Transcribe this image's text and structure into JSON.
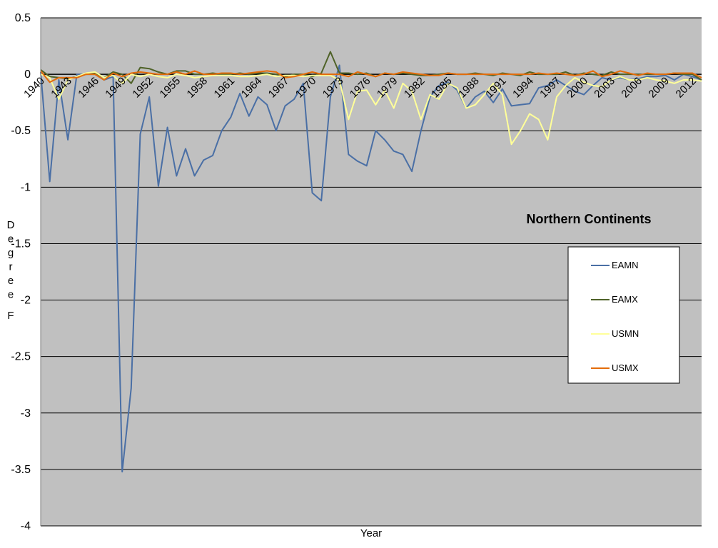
{
  "chart_data": {
    "type": "line",
    "title": "Northern Continents",
    "xlabel": "Year",
    "ylabel": "Degree F",
    "ylim": [
      -4,
      0.5
    ],
    "xlim": [
      1940,
      2013
    ],
    "yticks": [
      "0.5",
      "0",
      "-0.5",
      "-1",
      "-1.5",
      "-2",
      "-2.5",
      "-3",
      "-3.5",
      "-4"
    ],
    "ytick_values": [
      0.5,
      0,
      -0.5,
      -1,
      -1.5,
      -2,
      -2.5,
      -3,
      -3.5,
      -4
    ],
    "xticks": [
      "1940",
      "1943",
      "1946",
      "1949",
      "1952",
      "1955",
      "1958",
      "1961",
      "1964",
      "1967",
      "1970",
      "1973",
      "1976",
      "1979",
      "1982",
      "1985",
      "1988",
      "1991",
      "1994",
      "1997",
      "2000",
      "2003",
      "2006",
      "2009",
      "2012"
    ],
    "xtick_values": [
      1940,
      1943,
      1946,
      1949,
      1952,
      1955,
      1958,
      1961,
      1964,
      1967,
      1970,
      1973,
      1976,
      1979,
      1982,
      1985,
      1988,
      1991,
      1994,
      1997,
      2000,
      2003,
      2006,
      2009,
      2012
    ],
    "grid": "horizontal",
    "legend_position": "right",
    "x": [
      1940,
      1941,
      1942,
      1943,
      1944,
      1945,
      1946,
      1947,
      1948,
      1949,
      1950,
      1951,
      1952,
      1953,
      1954,
      1955,
      1956,
      1957,
      1958,
      1959,
      1960,
      1961,
      1962,
      1963,
      1964,
      1965,
      1966,
      1967,
      1968,
      1969,
      1970,
      1971,
      1972,
      1973,
      1974,
      1975,
      1976,
      1977,
      1978,
      1979,
      1980,
      1981,
      1982,
      1983,
      1984,
      1985,
      1986,
      1987,
      1988,
      1989,
      1990,
      1991,
      1992,
      1993,
      1994,
      1995,
      1996,
      1997,
      1998,
      1999,
      2000,
      2001,
      2002,
      2003,
      2004,
      2005,
      2006,
      2007,
      2008,
      2009,
      2010,
      2011,
      2012,
      2013
    ],
    "series": [
      {
        "name": "EAMN",
        "color": "#4a6fa5",
        "values": [
          0.02,
          -0.95,
          -0.05,
          -0.58,
          0.0,
          0.0,
          0.0,
          -0.05,
          -0.02,
          -3.52,
          -2.78,
          -0.53,
          -0.2,
          -0.99,
          -0.47,
          -0.9,
          -0.66,
          -0.9,
          -0.76,
          -0.72,
          -0.5,
          -0.38,
          -0.17,
          -0.37,
          -0.2,
          -0.27,
          -0.5,
          -0.28,
          -0.22,
          -0.08,
          -1.05,
          -1.12,
          -0.2,
          0.08,
          -0.71,
          -0.77,
          -0.81,
          -0.5,
          -0.58,
          -0.68,
          -0.71,
          -0.86,
          -0.5,
          -0.2,
          -0.1,
          -0.07,
          -0.14,
          -0.3,
          -0.2,
          -0.15,
          -0.25,
          -0.13,
          -0.28,
          -0.27,
          -0.26,
          -0.12,
          -0.1,
          -0.05,
          -0.1,
          -0.15,
          -0.18,
          -0.1,
          -0.03,
          -0.05,
          -0.03,
          -0.05,
          -0.04,
          -0.02,
          -0.02,
          -0.01,
          -0.05,
          0.0,
          -0.02,
          -0.05
        ]
      },
      {
        "name": "EAMX",
        "color": "#4f6228",
        "values": [
          0.04,
          -0.02,
          -0.03,
          -0.04,
          -0.02,
          0.0,
          0.01,
          -0.03,
          0.02,
          0.0,
          -0.08,
          0.06,
          0.05,
          0.02,
          0.0,
          0.03,
          0.03,
          0.0,
          0.0,
          0.01,
          0.0,
          0.0,
          0.01,
          0.0,
          0.01,
          0.01,
          0.0,
          -0.02,
          0.0,
          0.0,
          -0.02,
          0.01,
          0.2,
          0.01,
          0.01,
          0.0,
          0.01,
          -0.02,
          0.01,
          0.0,
          0.01,
          0.0,
          -0.01,
          -0.01,
          0.0,
          0.01,
          0.0,
          0.0,
          0.01,
          0.0,
          -0.01,
          0.01,
          0.0,
          -0.01,
          0.02,
          0.0,
          0.0,
          0.0,
          0.02,
          -0.01,
          0.01,
          0.0,
          -0.01,
          0.02,
          0.0,
          0.0,
          0.0,
          0.0,
          0.0,
          0.0,
          0.01,
          0.0,
          0.0,
          -0.05
        ]
      },
      {
        "name": "USMN",
        "color": "#ffff99",
        "values": [
          0.0,
          -0.03,
          -0.22,
          -0.05,
          -0.02,
          0.01,
          0.02,
          -0.03,
          -0.01,
          -0.08,
          0.0,
          -0.02,
          0.0,
          -0.02,
          -0.03,
          0.0,
          -0.01,
          -0.03,
          -0.02,
          -0.01,
          -0.01,
          -0.01,
          -0.02,
          -0.02,
          -0.01,
          0.0,
          -0.02,
          -0.01,
          -0.01,
          -0.02,
          -0.01,
          -0.01,
          -0.01,
          -0.05,
          -0.4,
          -0.15,
          -0.14,
          -0.27,
          -0.14,
          -0.3,
          -0.08,
          -0.15,
          -0.4,
          -0.18,
          -0.22,
          -0.08,
          -0.12,
          -0.3,
          -0.27,
          -0.18,
          -0.08,
          -0.18,
          -0.62,
          -0.5,
          -0.35,
          -0.4,
          -0.58,
          -0.2,
          -0.1,
          -0.03,
          -0.07,
          -0.1,
          -0.11,
          -0.05,
          -0.02,
          -0.05,
          -0.05,
          -0.03,
          -0.05,
          -0.06,
          -0.08,
          -0.05,
          -0.05,
          -0.06
        ]
      },
      {
        "name": "USMX",
        "color": "#e46c0a",
        "values": [
          0.03,
          -0.07,
          -0.03,
          -0.03,
          -0.03,
          0.0,
          0.0,
          -0.05,
          0.01,
          -0.02,
          0.01,
          0.02,
          0.01,
          0.0,
          0.0,
          0.02,
          0.0,
          0.03,
          0.0,
          0.0,
          0.01,
          0.01,
          0.0,
          0.01,
          0.02,
          0.03,
          0.02,
          -0.03,
          -0.02,
          0.0,
          0.02,
          0.0,
          0.0,
          0.0,
          -0.02,
          0.02,
          0.0,
          -0.02,
          0.01,
          0.0,
          0.02,
          0.01,
          0.0,
          -0.01,
          -0.01,
          0.01,
          0.0,
          0.0,
          0.0,
          0.0,
          0.0,
          0.0,
          0.0,
          0.0,
          0.0,
          0.01,
          0.0,
          0.01,
          0.0,
          -0.01,
          0.0,
          0.03,
          -0.02,
          0.0,
          0.03,
          0.01,
          -0.01,
          0.01,
          0.0,
          0.0,
          0.01,
          0.01,
          0.01,
          -0.03
        ]
      }
    ]
  }
}
